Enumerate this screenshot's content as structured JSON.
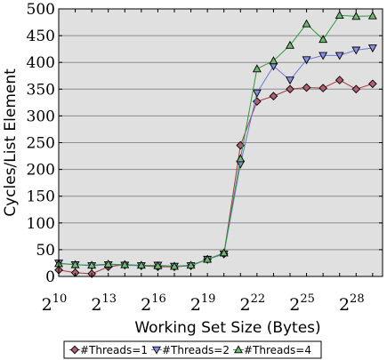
{
  "chart_data": {
    "type": "line",
    "title": "",
    "xlabel": "Working Set Size (Bytes)",
    "ylabel": "Cycles/List Element",
    "x_scale": "log2",
    "xlim": [
      10,
      29.6
    ],
    "ylim": [
      0,
      500
    ],
    "grid": "horizontal",
    "legend_position": "bottom",
    "background": "#e0e0e0",
    "x_ticks": [
      {
        "exp": 10,
        "base": "2",
        "sup": "10"
      },
      {
        "exp": 13,
        "base": "2",
        "sup": "13"
      },
      {
        "exp": 16,
        "base": "2",
        "sup": "16"
      },
      {
        "exp": 19,
        "base": "2",
        "sup": "19"
      },
      {
        "exp": 22,
        "base": "2",
        "sup": "22"
      },
      {
        "exp": 25,
        "base": "2",
        "sup": "25"
      },
      {
        "exp": 28,
        "base": "2",
        "sup": "28"
      }
    ],
    "y_ticks": [
      0,
      50,
      100,
      150,
      200,
      250,
      300,
      350,
      400,
      450,
      500
    ],
    "x": [
      10,
      11,
      12,
      13,
      14,
      15,
      16,
      17,
      18,
      19,
      20,
      21,
      22,
      23,
      24,
      25,
      26,
      27,
      28,
      29
    ],
    "series": [
      {
        "name": "#Threads=1",
        "color": "#a83840",
        "marker_fill": "#b06070",
        "marker": "diamond",
        "values": [
          12,
          7,
          5,
          18,
          22,
          20,
          18,
          18,
          20,
          32,
          42,
          245,
          327,
          337,
          350,
          353,
          352,
          367,
          350,
          360
        ]
      },
      {
        "name": "#Threads=2",
        "color": "#6a78d8",
        "marker_fill": "#8890e0",
        "marker": "triangle-down",
        "values": [
          25,
          22,
          20,
          22,
          21,
          20,
          21,
          19,
          20,
          32,
          42,
          210,
          343,
          393,
          367,
          405,
          413,
          413,
          423,
          427
        ]
      },
      {
        "name": "#Threads=4",
        "color": "#2a9a3a",
        "marker_fill": "#70b870",
        "marker": "triangle-up",
        "values": [
          24,
          22,
          21,
          23,
          22,
          21,
          20,
          19,
          21,
          32,
          44,
          220,
          388,
          403,
          432,
          472,
          443,
          488,
          486,
          487
        ]
      }
    ]
  }
}
